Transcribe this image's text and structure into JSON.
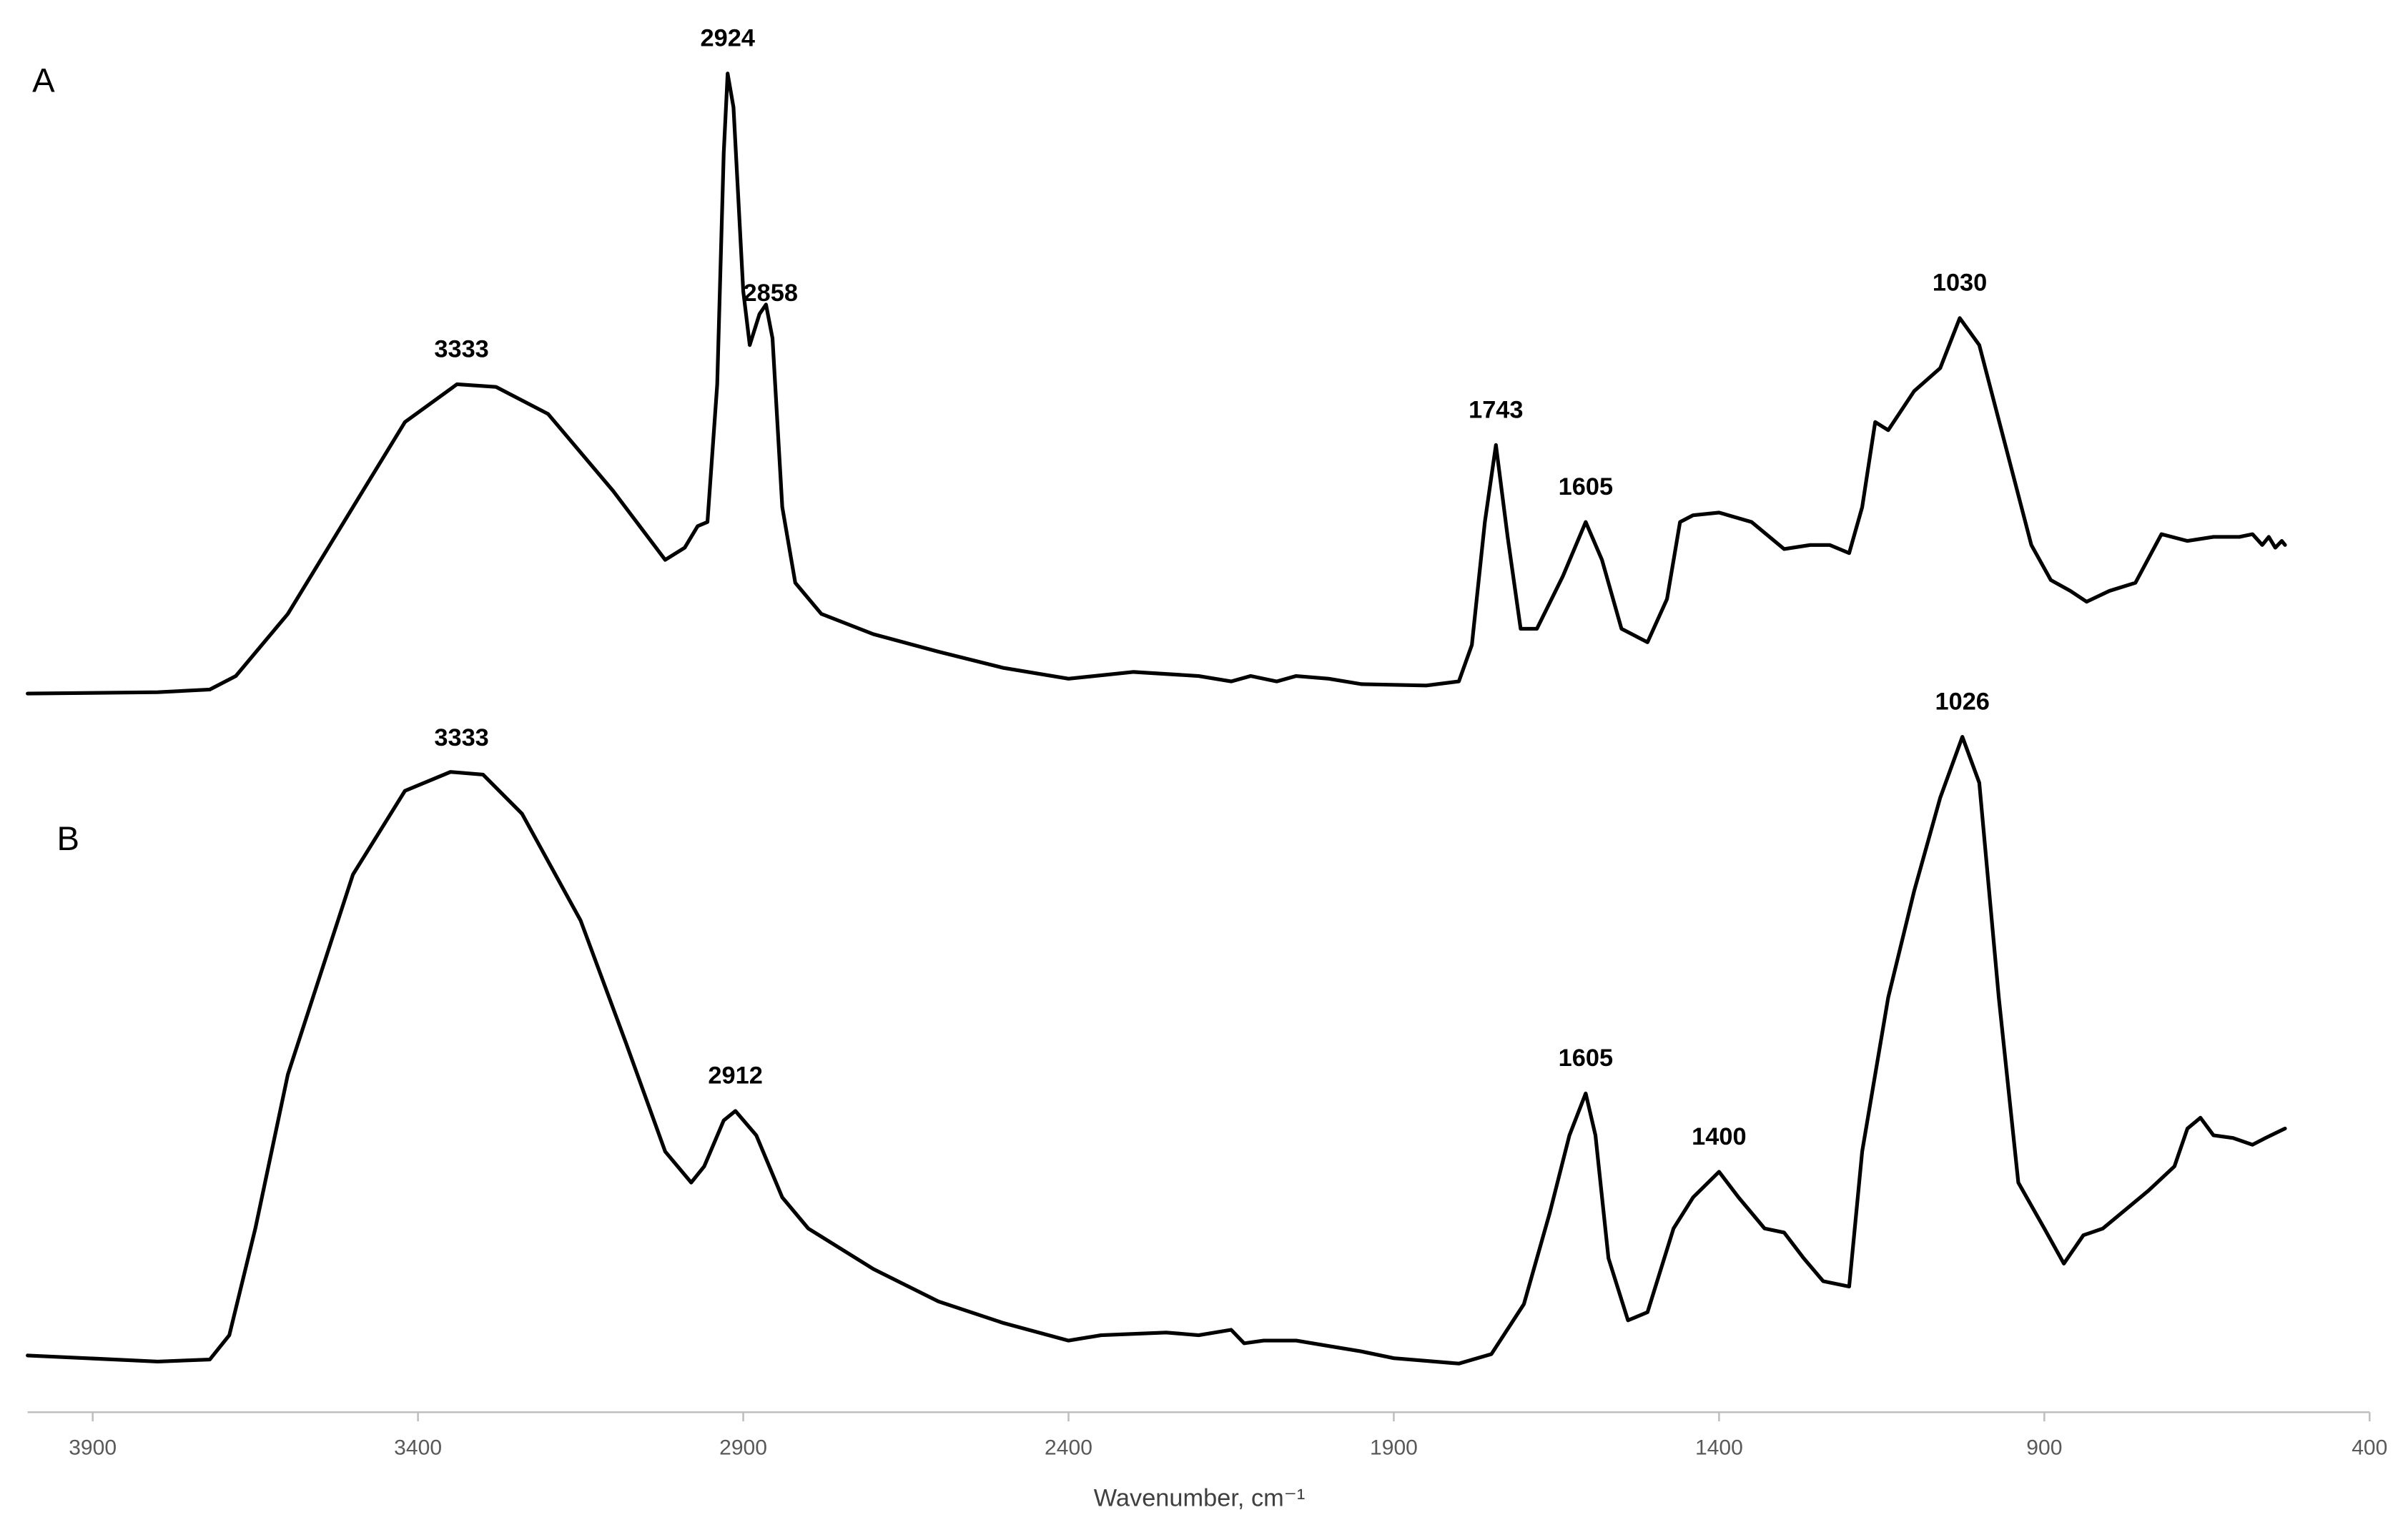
{
  "chart_data": {
    "type": "line",
    "x_label": "Wavenumber, cm⁻¹",
    "xlim": [
      4000,
      400
    ],
    "xticks": [
      3900,
      3400,
      2900,
      2400,
      1900,
      1400,
      900,
      400
    ],
    "ylim": [
      0,
      100
    ],
    "series": [
      {
        "name": "A",
        "color": "#000000",
        "x": [
          4000,
          3800,
          3720,
          3680,
          3600,
          3500,
          3420,
          3340,
          3280,
          3200,
          3100,
          3020,
          2990,
          2970,
          2955,
          2940,
          2930,
          2924,
          2915,
          2900,
          2890,
          2875,
          2865,
          2855,
          2840,
          2820,
          2780,
          2700,
          2600,
          2500,
          2400,
          2300,
          2200,
          2150,
          2120,
          2080,
          2050,
          2000,
          1950,
          1850,
          1800,
          1780,
          1760,
          1743,
          1725,
          1705,
          1680,
          1640,
          1605,
          1580,
          1550,
          1510,
          1480,
          1460,
          1440,
          1400,
          1350,
          1300,
          1260,
          1230,
          1200,
          1180,
          1160,
          1140,
          1100,
          1060,
          1030,
          1000,
          960,
          920,
          890,
          860,
          835,
          800,
          760,
          720,
          680,
          640,
          600,
          580,
          565,
          555,
          545,
          535,
          530
        ],
        "values": [
          53.2,
          53.3,
          53.5,
          54.5,
          59.1,
          67.0,
          73.3,
          76.1,
          75.9,
          73.9,
          68.2,
          63.1,
          64.0,
          65.6,
          65.9,
          76.1,
          93.2,
          99.1,
          96.6,
          83.0,
          79.0,
          81.3,
          82.0,
          79.5,
          67.0,
          61.4,
          59.1,
          57.6,
          56.3,
          55.1,
          54.3,
          54.8,
          54.5,
          54.1,
          54.5,
          54.1,
          54.5,
          54.3,
          53.9,
          53.8,
          54.1,
          56.8,
          65.9,
          71.6,
          64.8,
          58.0,
          58.0,
          61.9,
          65.9,
          63.1,
          58.0,
          57.0,
          60.2,
          65.9,
          66.4,
          66.6,
          65.9,
          63.9,
          64.2,
          64.2,
          63.6,
          67.0,
          73.3,
          72.7,
          75.6,
          77.3,
          81.0,
          79.0,
          71.6,
          64.2,
          61.6,
          60.8,
          60.0,
          60.8,
          61.4,
          65.0,
          64.5,
          64.8,
          64.8,
          65.0,
          64.2,
          64.8,
          64.0,
          64.5,
          64.2
        ],
        "peaks": [
          3333,
          2924,
          2858,
          1743,
          1605,
          1030
        ]
      },
      {
        "name": "B",
        "color": "#000000",
        "x": [
          4000,
          3800,
          3720,
          3690,
          3650,
          3600,
          3500,
          3420,
          3350,
          3300,
          3240,
          3150,
          3080,
          3020,
          2980,
          2960,
          2930,
          2912,
          2880,
          2840,
          2800,
          2700,
          2600,
          2500,
          2400,
          2350,
          2250,
          2200,
          2150,
          2130,
          2100,
          2050,
          2000,
          1950,
          1900,
          1800,
          1750,
          1700,
          1660,
          1630,
          1605,
          1590,
          1570,
          1540,
          1510,
          1470,
          1440,
          1400,
          1370,
          1330,
          1300,
          1270,
          1240,
          1200,
          1180,
          1140,
          1100,
          1060,
          1026,
          1000,
          970,
          940,
          900,
          870,
          840,
          810,
          780,
          740,
          700,
          680,
          660,
          640,
          610,
          580,
          560,
          530
        ],
        "values": [
          4.2,
          3.75,
          3.9,
          5.7,
          13.6,
          25.0,
          39.8,
          46.0,
          47.4,
          47.2,
          44.3,
          36.4,
          27.3,
          19.3,
          17.0,
          18.2,
          21.6,
          22.3,
          20.5,
          15.9,
          13.6,
          10.6,
          8.2,
          6.6,
          5.3,
          5.7,
          5.9,
          5.7,
          6.1,
          5.1,
          5.3,
          5.3,
          4.9,
          4.5,
          4.0,
          3.6,
          4.3,
          8.0,
          14.8,
          20.5,
          23.6,
          20.5,
          11.4,
          6.8,
          7.4,
          13.6,
          15.9,
          17.8,
          15.9,
          13.6,
          13.3,
          11.4,
          9.7,
          9.3,
          19.3,
          30.7,
          38.6,
          45.5,
          50.0,
          46.6,
          30.7,
          17.0,
          13.6,
          11.0,
          13.1,
          13.6,
          14.8,
          16.4,
          18.2,
          21.0,
          21.8,
          20.5,
          20.3,
          19.8,
          20.3,
          21.0
        ],
        "peaks": [
          3333,
          2912,
          1605,
          1400,
          1026
        ]
      }
    ]
  }
}
